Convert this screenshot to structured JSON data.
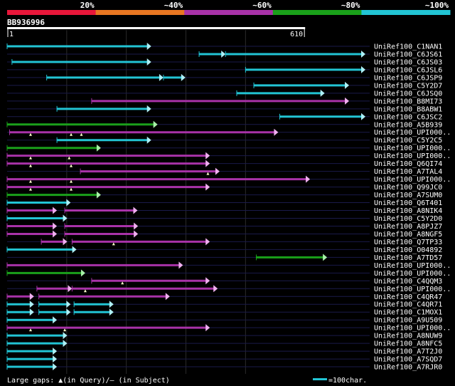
{
  "scale_labels": [
    "20%",
    "~40%",
    "~60%",
    "~80%",
    "~100%"
  ],
  "scale_colors": [
    "#e8173a",
    "#e87722",
    "#a832a8",
    "#1aa01a",
    "#22c4d4"
  ],
  "query": {
    "name": "BB936996",
    "start_label": "1",
    "end_label": "610",
    "length": 610
  },
  "footer": {
    "legend_text": "Large gaps: ▲(in Query)/– (in Subject)",
    "scale_text": "=100char."
  },
  "chart_data": {
    "type": "alignment",
    "query_length": 610,
    "hits": [
      {
        "name": "UniRef100_C1NAN1",
        "color": "cyan",
        "segments": [
          [
            0,
            295
          ]
        ],
        "gaps": []
      },
      {
        "name": "UniRef100_C6JS61",
        "color": "cyan",
        "segments": [
          [
            393,
            447
          ],
          [
            447,
            735
          ]
        ],
        "gaps": []
      },
      {
        "name": "UniRef100_C6JS03",
        "color": "cyan",
        "segments": [
          [
            10,
            295
          ]
        ],
        "gaps": []
      },
      {
        "name": "UniRef100_C6JSL6",
        "color": "cyan",
        "segments": [
          [
            488,
            735
          ]
        ],
        "gaps": []
      },
      {
        "name": "UniRef100_C6JSP9",
        "color": "cyan",
        "segments": [
          [
            81,
            320
          ],
          [
            320,
            365
          ]
        ],
        "gaps": []
      },
      {
        "name": "UniRef100_C5Y2D7",
        "color": "cyan",
        "segments": [
          [
            505,
            700
          ]
        ],
        "gaps": []
      },
      {
        "name": "UniRef100_C6JSQ0",
        "color": "cyan",
        "segments": [
          [
            470,
            650
          ]
        ],
        "gaps": []
      },
      {
        "name": "UniRef100_B8MI73",
        "color": "magenta",
        "segments": [
          [
            173,
            700
          ]
        ],
        "gaps": []
      },
      {
        "name": "UniRef100_B8ABW1",
        "color": "cyan",
        "segments": [
          [
            102,
            295
          ]
        ],
        "gaps": []
      },
      {
        "name": "UniRef100_C6JSC2",
        "color": "cyan",
        "segments": [
          [
            558,
            735
          ]
        ],
        "gaps": []
      },
      {
        "name": "UniRef100_A5B939",
        "color": "green",
        "segments": [
          [
            0,
            308
          ]
        ],
        "gaps": []
      },
      {
        "name": "UniRef100_UPI000..",
        "color": "magenta",
        "segments": [
          [
            5,
            555
          ]
        ],
        "gaps": [
          48,
          131,
          152
        ]
      },
      {
        "name": "UniRef100_C5Y2C5",
        "color": "cyan",
        "segments": [
          [
            102,
            295
          ]
        ],
        "gaps": []
      },
      {
        "name": "UniRef100_UPI000..",
        "color": "green",
        "segments": [
          [
            0,
            192
          ]
        ],
        "gaps": []
      },
      {
        "name": "UniRef100_UPI000..",
        "color": "magenta",
        "segments": [
          [
            0,
            415
          ]
        ],
        "gaps": [
          48,
          127
        ]
      },
      {
        "name": "UniRef100_Q6QI74",
        "color": "magenta",
        "segments": [
          [
            0,
            415
          ]
        ],
        "gaps": [
          48,
          131
        ]
      },
      {
        "name": "UniRef100_A7TAL4",
        "color": "magenta",
        "segments": [
          [
            150,
            435
          ]
        ],
        "gaps": [
          411
        ]
      },
      {
        "name": "UniRef100_UPI000..",
        "color": "magenta",
        "segments": [
          [
            0,
            620
          ]
        ],
        "gaps": [
          48,
          131
        ]
      },
      {
        "name": "UniRef100_Q99JC0",
        "color": "magenta",
        "segments": [
          [
            0,
            415
          ]
        ],
        "gaps": [
          48,
          131
        ]
      },
      {
        "name": "UniRef100_A7SUM0",
        "color": "green",
        "segments": [
          [
            0,
            192
          ]
        ],
        "gaps": []
      },
      {
        "name": "UniRef100_Q6T401",
        "color": "cyan",
        "segments": [
          [
            0,
            130
          ]
        ],
        "gaps": []
      },
      {
        "name": "UniRef100_A8NIK4",
        "color": "magenta",
        "segments": [
          [
            0,
            102
          ],
          [
            118,
            267
          ]
        ],
        "gaps": []
      },
      {
        "name": "UniRef100_C5Y2D0",
        "color": "cyan",
        "segments": [
          [
            0,
            123
          ]
        ],
        "gaps": []
      },
      {
        "name": "UniRef100_A8PJZ7",
        "color": "magenta",
        "segments": [
          [
            0,
            102
          ],
          [
            118,
            268
          ]
        ],
        "gaps": []
      },
      {
        "name": "UniRef100_A8NGF5",
        "color": "magenta",
        "segments": [
          [
            0,
            102
          ],
          [
            118,
            268
          ]
        ],
        "gaps": []
      },
      {
        "name": "UniRef100_Q7TP33",
        "color": "magenta",
        "segments": [
          [
            70,
            123
          ],
          [
            133,
            415
          ]
        ],
        "gaps": [
          218
        ]
      },
      {
        "name": "UniRef100_O04892",
        "color": "cyan",
        "segments": [
          [
            0,
            142
          ]
        ],
        "gaps": []
      },
      {
        "name": "UniRef100_A7TD57",
        "color": "green",
        "segments": [
          [
            510,
            655
          ]
        ],
        "gaps": []
      },
      {
        "name": "UniRef100_UPI000..",
        "color": "magenta",
        "segments": [
          [
            0,
            360
          ]
        ],
        "gaps": []
      },
      {
        "name": "UniRef100_UPI000..",
        "color": "green",
        "segments": [
          [
            0,
            160
          ]
        ],
        "gaps": []
      },
      {
        "name": "UniRef100_C4QQM3",
        "color": "magenta",
        "segments": [
          [
            173,
            415
          ]
        ],
        "gaps": [
          236
        ]
      },
      {
        "name": "UniRef100_UPI000..",
        "color": "magenta",
        "segments": [
          [
            61,
            133
          ],
          [
            133,
            431
          ]
        ],
        "gaps": [
          160
        ]
      },
      {
        "name": "UniRef100_C4QR47",
        "color": "magenta",
        "segments": [
          [
            0,
            55
          ],
          [
            65,
            333
          ]
        ],
        "gaps": []
      },
      {
        "name": "UniRef100_C4QR71",
        "color": "cyan",
        "segments": [
          [
            0,
            55
          ],
          [
            65,
            130
          ],
          [
            137,
            218
          ]
        ],
        "gaps": []
      },
      {
        "name": "UniRef100_C1MOX1",
        "color": "cyan",
        "segments": [
          [
            0,
            55
          ],
          [
            65,
            130
          ],
          [
            137,
            218
          ]
        ],
        "gaps": []
      },
      {
        "name": "UniRef100_A9U509",
        "color": "cyan",
        "segments": [
          [
            0,
            102
          ]
        ],
        "gaps": []
      },
      {
        "name": "UniRef100_UPI000..",
        "color": "magenta",
        "segments": [
          [
            0,
            415
          ]
        ],
        "gaps": [
          48,
          118
        ]
      },
      {
        "name": "UniRef100_A8NUW9",
        "color": "cyan",
        "segments": [
          [
            0,
            123
          ]
        ],
        "gaps": []
      },
      {
        "name": "UniRef100_A8NFC5",
        "color": "cyan",
        "segments": [
          [
            0,
            123
          ]
        ],
        "gaps": []
      },
      {
        "name": "UniRef100_A7T2J0",
        "color": "cyan",
        "segments": [
          [
            0,
            102
          ]
        ],
        "gaps": []
      },
      {
        "name": "UniRef100_A7SQD7",
        "color": "cyan",
        "segments": [
          [
            0,
            102
          ]
        ],
        "gaps": []
      },
      {
        "name": "UniRef100_A7RJR0",
        "color": "cyan",
        "segments": [
          [
            0,
            102
          ]
        ],
        "gaps": []
      }
    ]
  }
}
